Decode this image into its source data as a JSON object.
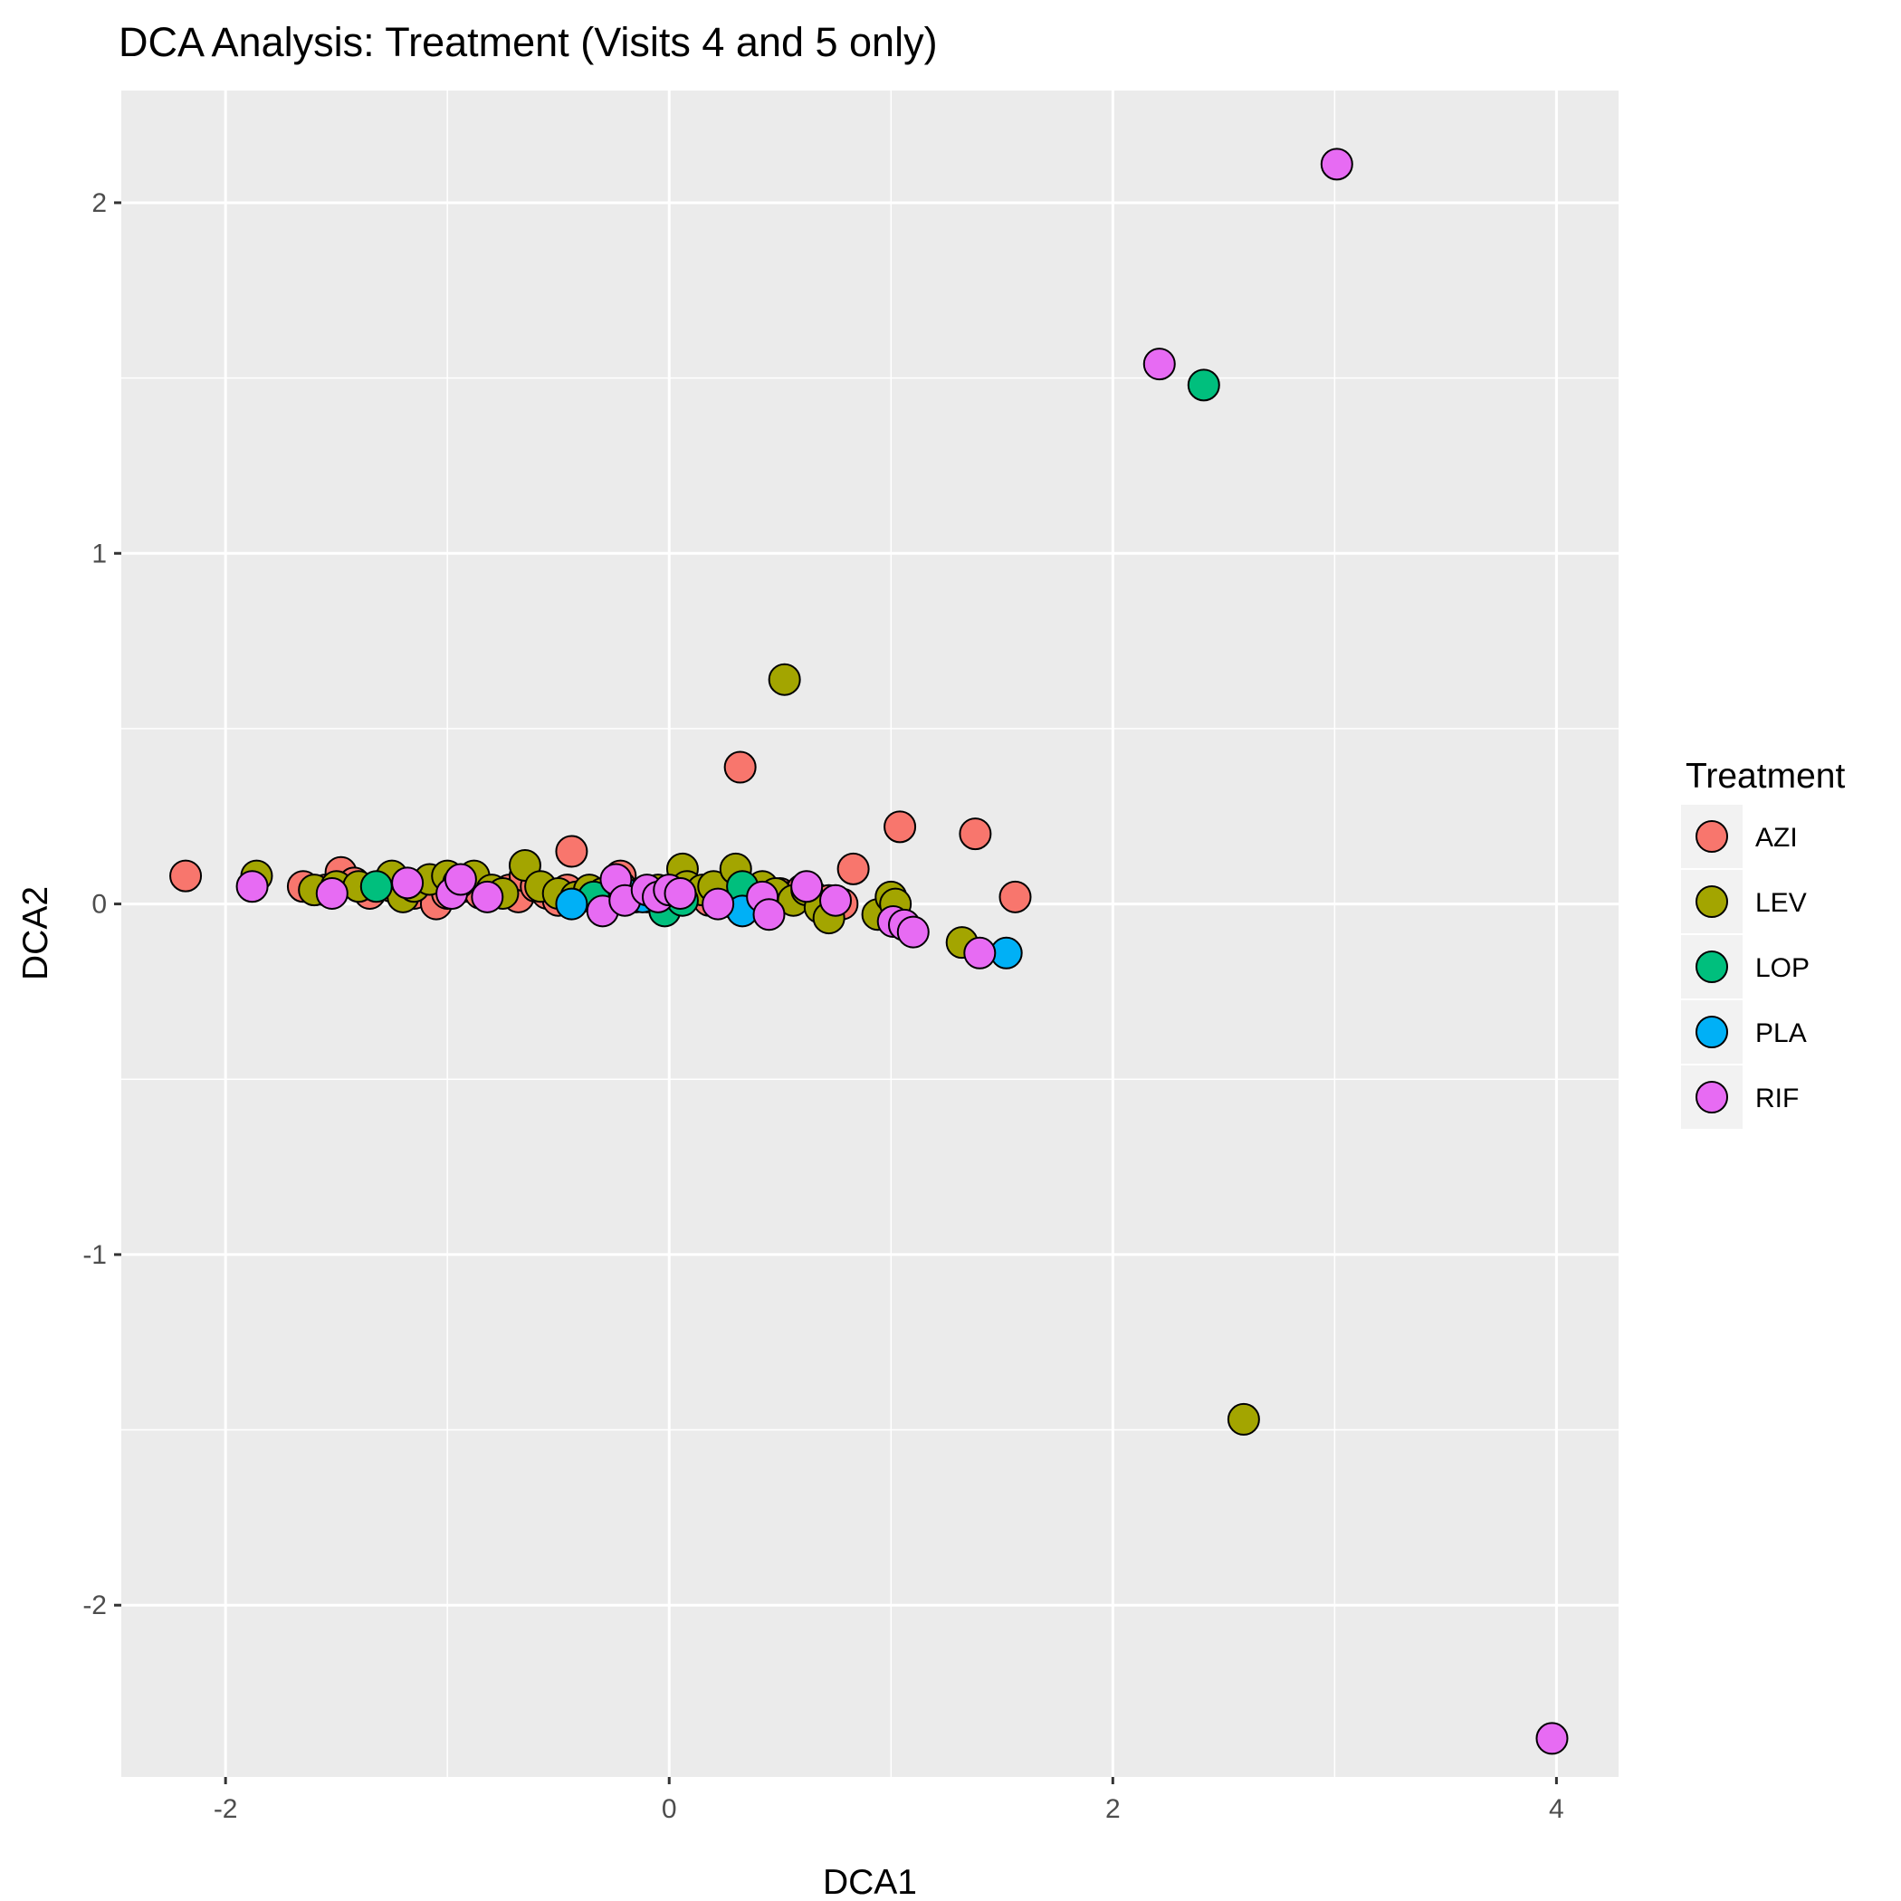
{
  "chart_data": {
    "type": "scatter",
    "title": "DCA Analysis: Treatment (Visits 4 and 5 only)",
    "xlabel": "DCA1",
    "ylabel": "DCA2",
    "xlim": [
      -2.47,
      4.28
    ],
    "ylim": [
      -2.49,
      2.32
    ],
    "x_ticks": [
      -2,
      0,
      2,
      4
    ],
    "y_ticks": [
      -2,
      -1,
      0,
      1,
      2
    ],
    "x_tick_labels": [
      "-2",
      "0",
      "2",
      "4"
    ],
    "y_tick_labels": [
      "-2",
      "-1",
      "0",
      "1",
      "2"
    ],
    "grid": true,
    "legend": {
      "title": "Treatment",
      "position": "right"
    },
    "series": [
      {
        "name": "AZI",
        "color": "#F8766D",
        "points": [
          [
            -2.18,
            0.08
          ],
          [
            -1.65,
            0.05
          ],
          [
            -1.55,
            0.04
          ],
          [
            -1.48,
            0.09
          ],
          [
            -1.42,
            0.06
          ],
          [
            -1.35,
            0.03
          ],
          [
            -1.25,
            0.05
          ],
          [
            -1.15,
            0.03
          ],
          [
            -1.08,
            0.06
          ],
          [
            -1.05,
            0.0
          ],
          [
            -1.0,
            0.03
          ],
          [
            -0.92,
            0.05
          ],
          [
            -0.85,
            0.03
          ],
          [
            -0.72,
            0.04
          ],
          [
            -0.68,
            0.02
          ],
          [
            -0.65,
            0.08
          ],
          [
            -0.6,
            0.05
          ],
          [
            -0.55,
            0.03
          ],
          [
            -0.5,
            0.01
          ],
          [
            -0.46,
            0.04
          ],
          [
            -0.44,
            0.15
          ],
          [
            -0.4,
            0.02
          ],
          [
            -0.35,
            0.03
          ],
          [
            -0.22,
            0.08
          ],
          [
            -0.18,
            0.03
          ],
          [
            -0.1,
            0.02
          ],
          [
            -0.02,
            0.03
          ],
          [
            0.05,
            0.02
          ],
          [
            0.12,
            0.03
          ],
          [
            0.18,
            0.01
          ],
          [
            0.25,
            0.02
          ],
          [
            0.3,
            0.0
          ],
          [
            0.32,
            0.39
          ],
          [
            0.38,
            0.01
          ],
          [
            0.45,
            0.03
          ],
          [
            0.5,
            0.03
          ],
          [
            0.55,
            0.02
          ],
          [
            0.6,
            0.04
          ],
          [
            0.65,
            0.02
          ],
          [
            0.72,
            0.01
          ],
          [
            0.78,
            0.0
          ],
          [
            0.83,
            0.1
          ],
          [
            1.0,
            -0.03
          ],
          [
            1.04,
            0.22
          ],
          [
            1.38,
            0.2
          ],
          [
            1.56,
            0.02
          ]
        ]
      },
      {
        "name": "LEV",
        "color": "#A3A500",
        "points": [
          [
            -1.86,
            0.08
          ],
          [
            -1.6,
            0.04
          ],
          [
            -1.5,
            0.05
          ],
          [
            -1.4,
            0.05
          ],
          [
            -1.25,
            0.08
          ],
          [
            -1.2,
            0.02
          ],
          [
            -1.15,
            0.05
          ],
          [
            -1.08,
            0.07
          ],
          [
            -1.0,
            0.08
          ],
          [
            -0.95,
            0.06
          ],
          [
            -0.88,
            0.08
          ],
          [
            -0.8,
            0.04
          ],
          [
            -0.75,
            0.03
          ],
          [
            -0.65,
            0.11
          ],
          [
            -0.58,
            0.05
          ],
          [
            -0.5,
            0.03
          ],
          [
            -0.42,
            0.02
          ],
          [
            -0.36,
            0.04
          ],
          [
            -0.3,
            0.03
          ],
          [
            -0.22,
            0.05
          ],
          [
            -0.15,
            0.02
          ],
          [
            -0.05,
            0.04
          ],
          [
            0.0,
            0.02
          ],
          [
            0.06,
            0.1
          ],
          [
            0.08,
            0.05
          ],
          [
            0.15,
            0.04
          ],
          [
            0.2,
            0.05
          ],
          [
            0.3,
            0.1
          ],
          [
            0.35,
            0.03
          ],
          [
            0.42,
            0.05
          ],
          [
            0.48,
            0.03
          ],
          [
            0.52,
            0.64
          ],
          [
            0.56,
            0.01
          ],
          [
            0.62,
            0.04
          ],
          [
            0.68,
            -0.01
          ],
          [
            0.72,
            -0.04
          ],
          [
            0.94,
            -0.03
          ],
          [
            1.0,
            0.02
          ],
          [
            1.02,
            0.0
          ],
          [
            1.32,
            -0.11
          ],
          [
            2.59,
            -1.47
          ]
        ]
      },
      {
        "name": "LOP",
        "color": "#00BF7D",
        "points": [
          [
            -1.32,
            0.05
          ],
          [
            -0.34,
            0.02
          ],
          [
            -0.02,
            -0.02
          ],
          [
            0.06,
            0.01
          ],
          [
            0.33,
            0.05
          ],
          [
            2.41,
            1.48
          ]
        ]
      },
      {
        "name": "PLA",
        "color": "#00B0F6",
        "points": [
          [
            -0.44,
            0.0
          ],
          [
            -0.2,
            0.03
          ],
          [
            -0.12,
            0.02
          ],
          [
            0.33,
            -0.02
          ],
          [
            1.52,
            -0.14
          ]
        ]
      },
      {
        "name": "RIF",
        "color": "#E76BF3",
        "points": [
          [
            -1.88,
            0.05
          ],
          [
            -1.52,
            0.03
          ],
          [
            -1.18,
            0.06
          ],
          [
            -0.98,
            0.03
          ],
          [
            -0.94,
            0.07
          ],
          [
            -0.82,
            0.02
          ],
          [
            -0.3,
            -0.02
          ],
          [
            -0.24,
            0.07
          ],
          [
            -0.2,
            0.01
          ],
          [
            -0.1,
            0.04
          ],
          [
            -0.05,
            0.02
          ],
          [
            0.0,
            0.04
          ],
          [
            0.05,
            0.03
          ],
          [
            0.22,
            0.0
          ],
          [
            0.42,
            0.02
          ],
          [
            0.45,
            -0.03
          ],
          [
            0.62,
            0.05
          ],
          [
            0.75,
            0.01
          ],
          [
            1.01,
            -0.05
          ],
          [
            1.06,
            -0.06
          ],
          [
            1.1,
            -0.08
          ],
          [
            1.4,
            -0.14
          ],
          [
            2.21,
            1.54
          ],
          [
            3.01,
            2.11
          ],
          [
            3.98,
            -2.38
          ]
        ]
      }
    ]
  }
}
